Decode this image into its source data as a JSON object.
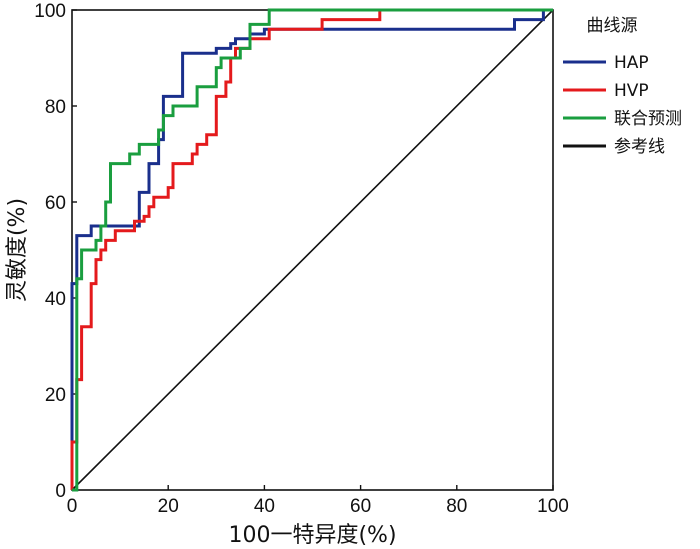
{
  "chart_data": {
    "type": "line",
    "xlabel": "100一特异度(%)",
    "ylabel": "灵敏度(%)",
    "xlim": [
      0,
      100
    ],
    "ylim": [
      0,
      100
    ],
    "x_ticks": [
      "0",
      "20",
      "40",
      "60",
      "80",
      "100"
    ],
    "y_ticks": [
      "0",
      "20",
      "40",
      "60",
      "80",
      "100"
    ],
    "grid": false,
    "legend": {
      "title": "曲线源",
      "placement": "right"
    },
    "series": [
      {
        "name": "HAP",
        "color": "#1a2f8c",
        "step": true,
        "points": [
          [
            0,
            0
          ],
          [
            0,
            43
          ],
          [
            1,
            43
          ],
          [
            1,
            53
          ],
          [
            4,
            53
          ],
          [
            4,
            55
          ],
          [
            14,
            55
          ],
          [
            14,
            62
          ],
          [
            16,
            62
          ],
          [
            16,
            68
          ],
          [
            18,
            68
          ],
          [
            18,
            73
          ],
          [
            19,
            73
          ],
          [
            19,
            82
          ],
          [
            23,
            82
          ],
          [
            23,
            91
          ],
          [
            30,
            91
          ],
          [
            30,
            92
          ],
          [
            33,
            92
          ],
          [
            33,
            93
          ],
          [
            34,
            93
          ],
          [
            34,
            94
          ],
          [
            37,
            94
          ],
          [
            37,
            95
          ],
          [
            40,
            95
          ],
          [
            40,
            96
          ],
          [
            92,
            96
          ],
          [
            92,
            98
          ],
          [
            98,
            98
          ],
          [
            98,
            100
          ],
          [
            100,
            100
          ]
        ]
      },
      {
        "name": "HVP",
        "color": "#e41a1c",
        "step": true,
        "points": [
          [
            0,
            0
          ],
          [
            0,
            10
          ],
          [
            1,
            10
          ],
          [
            1,
            23
          ],
          [
            2,
            23
          ],
          [
            2,
            34
          ],
          [
            4,
            34
          ],
          [
            4,
            43
          ],
          [
            5,
            43
          ],
          [
            5,
            48
          ],
          [
            6,
            48
          ],
          [
            6,
            50
          ],
          [
            7,
            50
          ],
          [
            7,
            52
          ],
          [
            9,
            52
          ],
          [
            9,
            54
          ],
          [
            13,
            54
          ],
          [
            13,
            56
          ],
          [
            15,
            56
          ],
          [
            15,
            57
          ],
          [
            16,
            57
          ],
          [
            16,
            59
          ],
          [
            17,
            59
          ],
          [
            17,
            61
          ],
          [
            20,
            61
          ],
          [
            20,
            63
          ],
          [
            21,
            63
          ],
          [
            21,
            68
          ],
          [
            25,
            68
          ],
          [
            25,
            70
          ],
          [
            26,
            70
          ],
          [
            26,
            72
          ],
          [
            28,
            72
          ],
          [
            28,
            74
          ],
          [
            30,
            74
          ],
          [
            30,
            82
          ],
          [
            32,
            82
          ],
          [
            32,
            85
          ],
          [
            33,
            85
          ],
          [
            33,
            90
          ],
          [
            34,
            90
          ],
          [
            34,
            92
          ],
          [
            37,
            92
          ],
          [
            37,
            94
          ],
          [
            41,
            94
          ],
          [
            41,
            96
          ],
          [
            52,
            96
          ],
          [
            52,
            98
          ],
          [
            64,
            98
          ],
          [
            64,
            100
          ],
          [
            100,
            100
          ]
        ]
      },
      {
        "name": "联合预测",
        "color": "#1a9e3f",
        "step": true,
        "points": [
          [
            0,
            0
          ],
          [
            1,
            0
          ],
          [
            1,
            44
          ],
          [
            2,
            44
          ],
          [
            2,
            50
          ],
          [
            5,
            50
          ],
          [
            5,
            52
          ],
          [
            6,
            52
          ],
          [
            6,
            55
          ],
          [
            7,
            55
          ],
          [
            7,
            60
          ],
          [
            8,
            60
          ],
          [
            8,
            68
          ],
          [
            12,
            68
          ],
          [
            12,
            70
          ],
          [
            14,
            70
          ],
          [
            14,
            72
          ],
          [
            18,
            72
          ],
          [
            18,
            75
          ],
          [
            19,
            75
          ],
          [
            19,
            78
          ],
          [
            21,
            78
          ],
          [
            21,
            80
          ],
          [
            26,
            80
          ],
          [
            26,
            84
          ],
          [
            30,
            84
          ],
          [
            30,
            88
          ],
          [
            31,
            88
          ],
          [
            31,
            90
          ],
          [
            35,
            90
          ],
          [
            35,
            92
          ],
          [
            37,
            92
          ],
          [
            37,
            97
          ],
          [
            41,
            97
          ],
          [
            41,
            100
          ],
          [
            100,
            100
          ]
        ]
      },
      {
        "name": "参考线",
        "color": "#111111",
        "step": false,
        "points": [
          [
            0,
            0
          ],
          [
            100,
            100
          ]
        ]
      }
    ]
  }
}
